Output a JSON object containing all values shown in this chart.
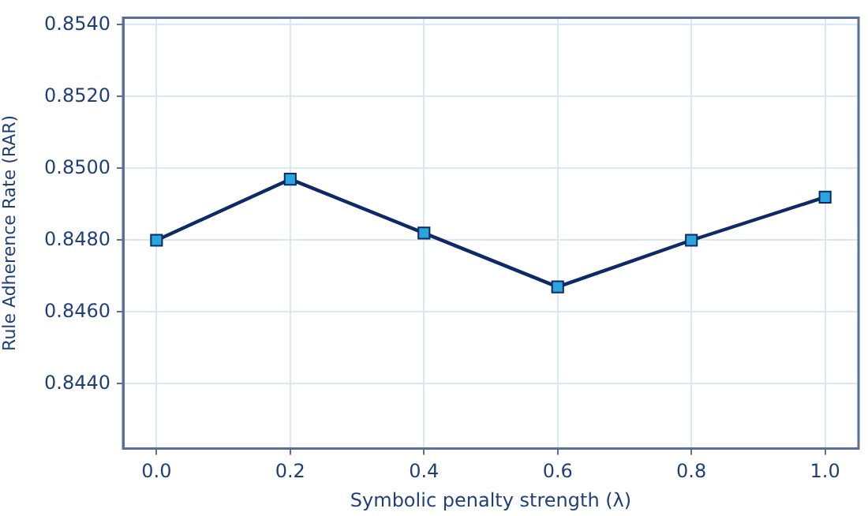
{
  "chart_data": {
    "type": "line",
    "xlabel": "Symbolic penalty strength (λ)",
    "ylabel": "Rule Adherence Rate (RAR)",
    "x": [
      0.0,
      0.2,
      0.4,
      0.6,
      0.8,
      1.0
    ],
    "series": [
      {
        "color": "#0d2a66",
        "colors": [
          "#2aa6dc",
          "#2aa6dc",
          "#2aa6dc",
          "#2aa6dc",
          "#2aa6dc",
          "#2aa6dc"
        ],
        "values": [
          0.848,
          0.8497,
          0.8482,
          0.8467,
          0.848,
          0.8492
        ]
      }
    ],
    "xlim": [
      -0.05,
      1.05
    ],
    "xticks": [
      {
        "value": 0,
        "label": "0.0"
      },
      {
        "value": 0.2,
        "label": "0.2"
      },
      {
        "value": 0.4,
        "label": "0.4"
      },
      {
        "value": 0.6,
        "label": "0.6"
      },
      {
        "value": 0.8,
        "label": "0.8"
      },
      {
        "value": 1,
        "label": "1.0"
      }
    ],
    "ylim": [
      0.8422,
      0.8542
    ],
    "yticks": [
      {
        "value": 0.844,
        "label": "0.8440"
      },
      {
        "value": 0.846,
        "label": "0.8460"
      },
      {
        "value": 0.848,
        "label": "0.8480"
      },
      {
        "value": 0.85,
        "label": "0.8500"
      },
      {
        "value": 0.852,
        "label": "0.8520"
      },
      {
        "value": 0.854,
        "label": "0.8540"
      }
    ],
    "grid": true,
    "legend": false,
    "marker": "square",
    "line_style": "solid"
  }
}
